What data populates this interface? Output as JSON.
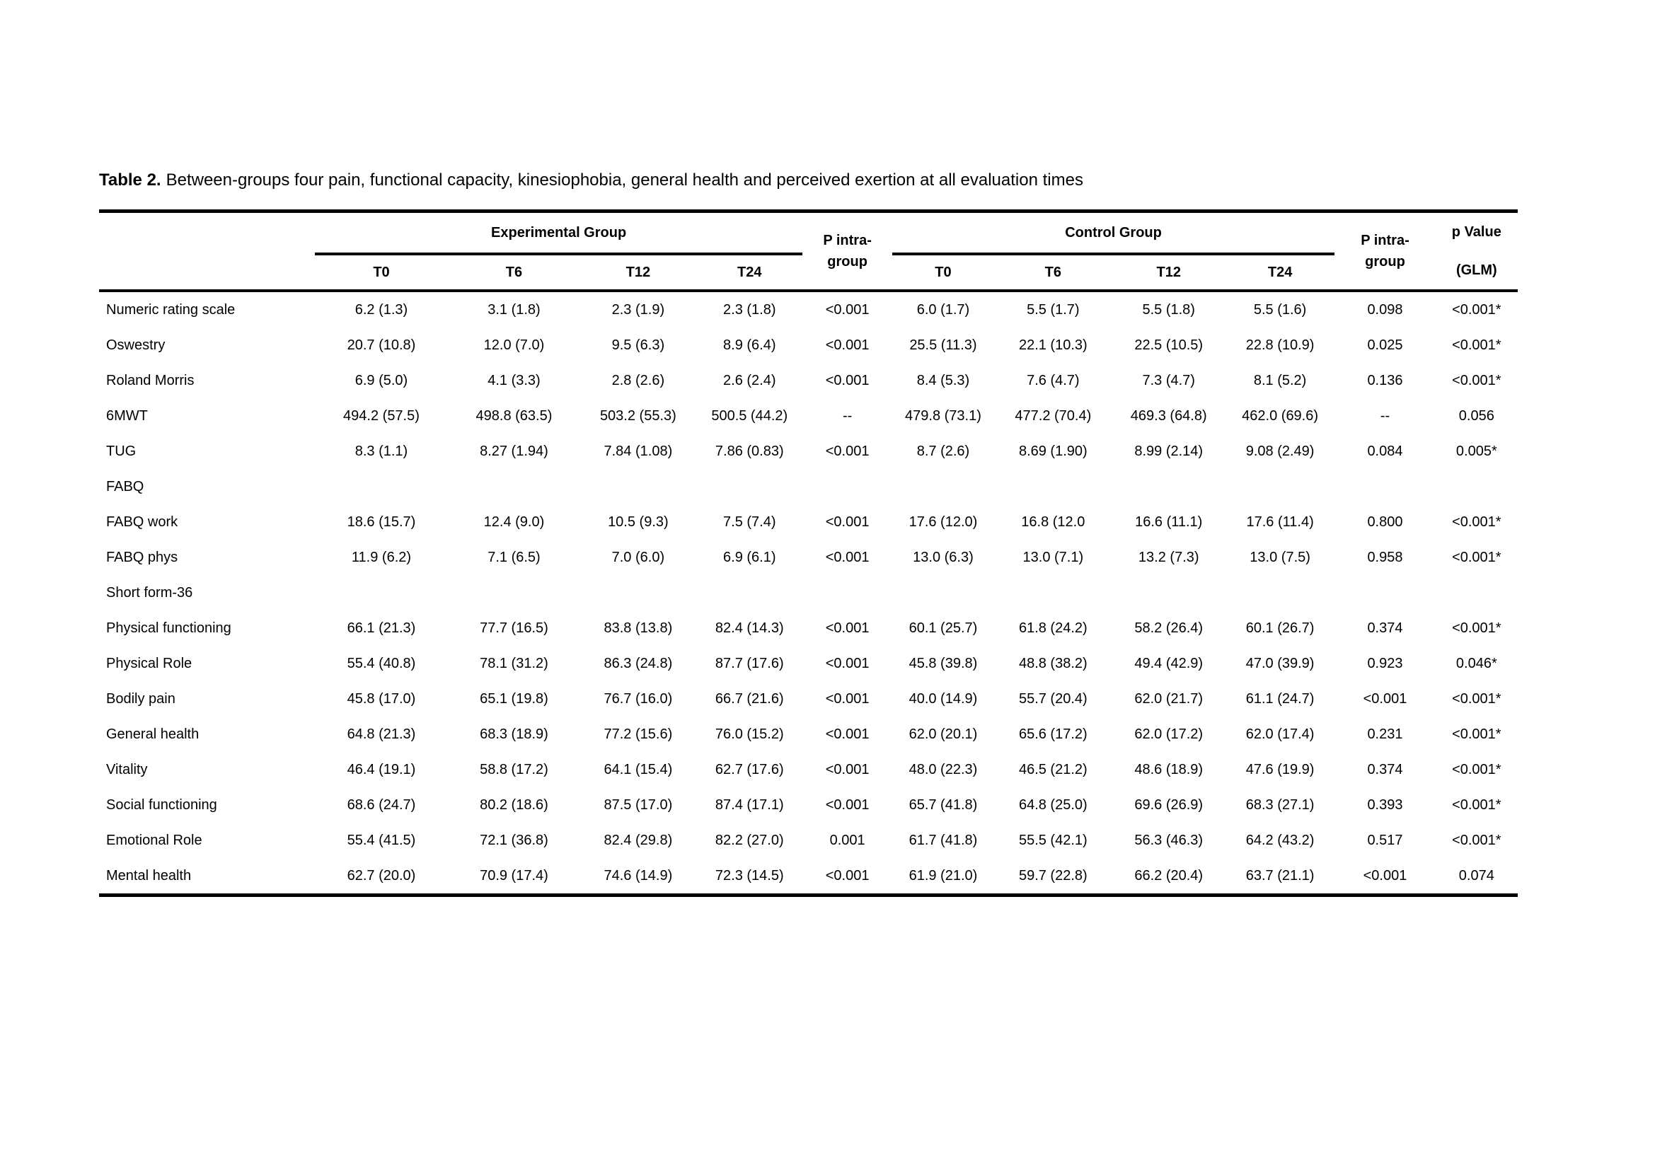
{
  "colors": {
    "text": "#000000",
    "rule": "#000000",
    "background": "#ffffff"
  },
  "title": {
    "label": "Table 2.",
    "text": "Between-groups four pain, functional capacity, kinesiophobia, general health and perceived exertion at all evaluation times"
  },
  "table": {
    "group_headers": {
      "experimental": "Experimental Group",
      "control": "Control Group"
    },
    "p_intra_label": "P intra-\ngroup",
    "p_value_label": "p Value\n(GLM)",
    "time_points": [
      "T0",
      "T6",
      "T12",
      "T24"
    ],
    "rows": [
      {
        "label": "Numeric rating scale",
        "section": false,
        "values": [
          "6.2 (1.3)",
          "3.1 (1.8)",
          "2.3 (1.9)",
          "2.3 (1.8)",
          "<0.001",
          "6.0 (1.7)",
          "5.5 (1.7)",
          "5.5 (1.8)",
          "5.5 (1.6)",
          "0.098",
          "<0.001*"
        ]
      },
      {
        "label": "Oswestry",
        "section": false,
        "values": [
          "20.7 (10.8)",
          "12.0 (7.0)",
          "9.5 (6.3)",
          "8.9 (6.4)",
          "<0.001",
          "25.5 (11.3)",
          "22.1 (10.3)",
          "22.5 (10.5)",
          "22.8 (10.9)",
          "0.025",
          "<0.001*"
        ]
      },
      {
        "label": "Roland Morris",
        "section": false,
        "values": [
          "6.9 (5.0)",
          "4.1 (3.3)",
          "2.8 (2.6)",
          "2.6 (2.4)",
          "<0.001",
          "8.4 (5.3)",
          "7.6 (4.7)",
          "7.3 (4.7)",
          "8.1 (5.2)",
          "0.136",
          "<0.001*"
        ]
      },
      {
        "label": "6MWT",
        "section": false,
        "values": [
          "494.2 (57.5)",
          "498.8 (63.5)",
          "503.2 (55.3)",
          "500.5 (44.2)",
          "--",
          "479.8 (73.1)",
          "477.2 (70.4)",
          "469.3 (64.8)",
          "462.0 (69.6)",
          "--",
          "0.056"
        ]
      },
      {
        "label": "TUG",
        "section": false,
        "values": [
          "8.3 (1.1)",
          "8.27 (1.94)",
          "7.84 (1.08)",
          "7.86 (0.83)",
          "<0.001",
          "8.7 (2.6)",
          "8.69 (1.90)",
          "8.99 (2.14)",
          "9.08 (2.49)",
          "0.084",
          "0.005*"
        ]
      },
      {
        "label": "FABQ",
        "section": true,
        "values": []
      },
      {
        "label": "FABQ work",
        "section": false,
        "values": [
          "18.6 (15.7)",
          "12.4 (9.0)",
          "10.5 (9.3)",
          "7.5 (7.4)",
          "<0.001",
          "17.6 (12.0)",
          "16.8 (12.0",
          "16.6 (11.1)",
          "17.6 (11.4)",
          "0.800",
          "<0.001*"
        ]
      },
      {
        "label": "FABQ phys",
        "section": false,
        "values": [
          "11.9 (6.2)",
          "7.1 (6.5)",
          "7.0 (6.0)",
          "6.9 (6.1)",
          "<0.001",
          "13.0 (6.3)",
          "13.0 (7.1)",
          "13.2 (7.3)",
          "13.0 (7.5)",
          "0.958",
          "<0.001*"
        ]
      },
      {
        "label": "Short form-36",
        "section": true,
        "values": []
      },
      {
        "label": "Physical functioning",
        "section": false,
        "values": [
          "66.1 (21.3)",
          "77.7 (16.5)",
          "83.8 (13.8)",
          "82.4 (14.3)",
          "<0.001",
          "60.1 (25.7)",
          "61.8 (24.2)",
          "58.2 (26.4)",
          "60.1 (26.7)",
          "0.374",
          "<0.001*"
        ]
      },
      {
        "label": "Physical Role",
        "section": false,
        "values": [
          "55.4 (40.8)",
          "78.1 (31.2)",
          "86.3 (24.8)",
          "87.7 (17.6)",
          "<0.001",
          "45.8 (39.8)",
          "48.8 (38.2)",
          "49.4 (42.9)",
          "47.0 (39.9)",
          "0.923",
          "0.046*"
        ]
      },
      {
        "label": "Bodily pain",
        "section": false,
        "values": [
          "45.8 (17.0)",
          "65.1 (19.8)",
          "76.7 (16.0)",
          "66.7 (21.6)",
          "<0.001",
          "40.0 (14.9)",
          "55.7 (20.4)",
          "62.0 (21.7)",
          "61.1 (24.7)",
          "<0.001",
          "<0.001*"
        ]
      },
      {
        "label": "General health",
        "section": false,
        "values": [
          "64.8 (21.3)",
          "68.3 (18.9)",
          "77.2 (15.6)",
          "76.0 (15.2)",
          "<0.001",
          "62.0 (20.1)",
          "65.6 (17.2)",
          "62.0 (17.2)",
          "62.0 (17.4)",
          "0.231",
          "<0.001*"
        ]
      },
      {
        "label": "Vitality",
        "section": false,
        "values": [
          "46.4 (19.1)",
          "58.8 (17.2)",
          "64.1 (15.4)",
          "62.7 (17.6)",
          "<0.001",
          "48.0 (22.3)",
          "46.5 (21.2)",
          "48.6 (18.9)",
          "47.6 (19.9)",
          "0.374",
          "<0.001*"
        ]
      },
      {
        "label": "Social functioning",
        "section": false,
        "values": [
          "68.6 (24.7)",
          "80.2 (18.6)",
          "87.5 (17.0)",
          "87.4 (17.1)",
          "<0.001",
          "65.7 (41.8)",
          "64.8 (25.0)",
          "69.6 (26.9)",
          "68.3 (27.1)",
          "0.393",
          "<0.001*"
        ]
      },
      {
        "label": "Emotional Role",
        "section": false,
        "values": [
          "55.4 (41.5)",
          "72.1 (36.8)",
          "82.4 (29.8)",
          "82.2 (27.0)",
          "0.001",
          "61.7 (41.8)",
          "55.5 (42.1)",
          "56.3 (46.3)",
          "64.2 (43.2)",
          "0.517",
          "<0.001*"
        ]
      },
      {
        "label": "Mental health",
        "section": false,
        "values": [
          "62.7 (20.0)",
          "70.9 (17.4)",
          "74.6 (14.9)",
          "72.3 (14.5)",
          "<0.001",
          "61.9 (21.0)",
          "59.7 (22.8)",
          "66.2 (20.4)",
          "63.7 (21.1)",
          "<0.001",
          "0.074"
        ]
      }
    ]
  }
}
